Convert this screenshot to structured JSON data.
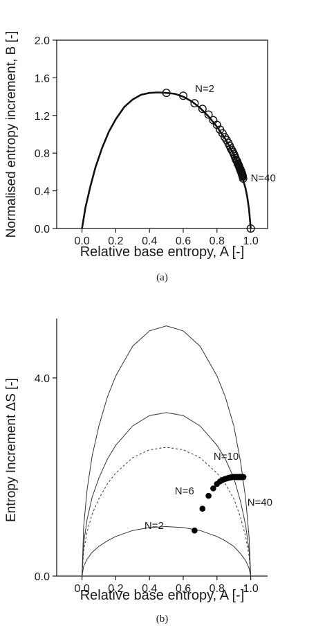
{
  "chart_data": [
    {
      "type": "scatter",
      "caption": "(a)",
      "xlabel": "Relative base entropy, A [-]",
      "ylabel": "Normalised entropy increment,  B [-]",
      "xlim": [
        -0.15,
        1.1
      ],
      "ylim": [
        0.0,
        2.0
      ],
      "xticks": [
        "0.0",
        "0.2",
        "0.4",
        "0.6",
        "0.8",
        "1.0"
      ],
      "yticks": [
        "0.0",
        "0.4",
        "0.8",
        "1.2",
        "1.6",
        "2.0"
      ],
      "grid": false,
      "curve": {
        "x": [
          0.0,
          0.02,
          0.05,
          0.08,
          0.12,
          0.16,
          0.2,
          0.25,
          0.3,
          0.35,
          0.4,
          0.45,
          0.5,
          0.55,
          0.6,
          0.65,
          0.7,
          0.75,
          0.8,
          0.85,
          0.9,
          0.93,
          0.95,
          0.97,
          0.98,
          0.99,
          1.0
        ],
        "y": [
          0.0,
          0.22,
          0.45,
          0.65,
          0.86,
          1.03,
          1.16,
          1.29,
          1.37,
          1.42,
          1.44,
          1.445,
          1.44,
          1.43,
          1.4,
          1.35,
          1.28,
          1.19,
          1.08,
          0.95,
          0.78,
          0.65,
          0.55,
          0.42,
          0.33,
          0.2,
          0.0
        ]
      },
      "points": {
        "x": [
          0.5,
          0.6,
          0.667,
          0.714,
          0.75,
          0.778,
          0.8,
          0.818,
          0.833,
          0.846,
          0.857,
          0.867,
          0.875,
          0.882,
          0.889,
          0.895,
          0.9,
          0.905,
          0.909,
          0.913,
          0.917,
          0.92,
          0.923,
          0.926,
          0.929,
          0.931,
          0.933,
          0.935,
          0.938,
          0.939,
          0.941,
          0.943,
          0.944,
          0.946,
          0.947,
          0.949,
          0.95,
          0.951,
          0.952,
          0.953,
          0.955,
          1.0
        ],
        "y": [
          1.44,
          1.41,
          1.33,
          1.27,
          1.21,
          1.15,
          1.1,
          1.05,
          1.01,
          0.97,
          0.94,
          0.91,
          0.88,
          0.85,
          0.83,
          0.81,
          0.79,
          0.77,
          0.75,
          0.73,
          0.72,
          0.71,
          0.69,
          0.68,
          0.67,
          0.66,
          0.65,
          0.64,
          0.63,
          0.62,
          0.61,
          0.61,
          0.6,
          0.59,
          0.58,
          0.58,
          0.57,
          0.56,
          0.56,
          0.55,
          0.53,
          0.0
        ]
      },
      "annotations": [
        {
          "text": "N=2",
          "x": 0.67,
          "y": 1.45
        },
        {
          "text": "N=40",
          "x": 1.0,
          "y": 0.5
        }
      ]
    },
    {
      "type": "scatter",
      "caption": "(b)",
      "xlabel": "Relative base entropy, A [-]",
      "ylabel": "Entropy Increment ΔS [-]",
      "xlim": [
        -0.15,
        1.1
      ],
      "ylim": [
        0.0,
        5.2
      ],
      "xticks": [
        "0.0",
        "0.2",
        "0.4",
        "0.6",
        "0.8",
        "1.0"
      ],
      "yticks": [
        "0.0",
        "4.0"
      ],
      "ytick_values": [
        0.0,
        4.0
      ],
      "grid": false,
      "curves": [
        {
          "style": "solid",
          "x": [
            0.0,
            0.01,
            0.03,
            0.06,
            0.1,
            0.15,
            0.2,
            0.3,
            0.4,
            0.5,
            0.6,
            0.7,
            0.8,
            0.85,
            0.9,
            0.94,
            0.97,
            0.99,
            1.0
          ],
          "y": [
            0.0,
            1.0,
            1.74,
            2.42,
            3.03,
            3.61,
            4.04,
            4.64,
            4.95,
            5.05,
            4.95,
            4.64,
            4.04,
            3.61,
            3.03,
            2.3,
            1.56,
            0.79,
            0.0
          ]
        },
        {
          "style": "solid",
          "x": [
            0.0,
            0.01,
            0.03,
            0.06,
            0.1,
            0.15,
            0.2,
            0.3,
            0.4,
            0.5,
            0.6,
            0.7,
            0.8,
            0.85,
            0.9,
            0.94,
            0.97,
            0.99,
            1.0
          ],
          "y": [
            0.0,
            0.66,
            1.14,
            1.59,
            1.98,
            2.36,
            2.64,
            3.03,
            3.24,
            3.3,
            3.24,
            3.03,
            2.64,
            2.36,
            1.98,
            1.5,
            1.02,
            0.52,
            0.0
          ]
        },
        {
          "style": "dashed",
          "x": [
            0.0,
            0.01,
            0.03,
            0.06,
            0.1,
            0.15,
            0.2,
            0.3,
            0.4,
            0.5,
            0.6,
            0.7,
            0.8,
            0.85,
            0.9,
            0.94,
            0.97,
            0.99,
            1.0
          ],
          "y": [
            0.0,
            0.52,
            0.89,
            1.25,
            1.56,
            1.86,
            2.08,
            2.39,
            2.55,
            2.6,
            2.55,
            2.39,
            2.08,
            1.86,
            1.56,
            1.18,
            0.8,
            0.41,
            0.0
          ]
        },
        {
          "style": "solid",
          "x": [
            0.0,
            0.01,
            0.03,
            0.06,
            0.1,
            0.15,
            0.2,
            0.3,
            0.4,
            0.5,
            0.6,
            0.7,
            0.8,
            0.85,
            0.9,
            0.94,
            0.97,
            0.99,
            1.0
          ],
          "y": [
            0.0,
            0.2,
            0.34,
            0.48,
            0.6,
            0.71,
            0.8,
            0.92,
            0.98,
            1.0,
            0.98,
            0.92,
            0.8,
            0.71,
            0.6,
            0.45,
            0.31,
            0.16,
            0.0
          ]
        }
      ],
      "points": {
        "x": [
          0.667,
          0.714,
          0.75,
          0.778,
          0.8,
          0.818,
          0.833,
          0.846,
          0.857,
          0.867,
          0.875,
          0.882,
          0.889,
          0.895,
          0.9,
          0.905,
          0.909,
          0.913,
          0.917,
          0.92,
          0.923,
          0.926,
          0.929,
          0.931,
          0.933,
          0.935,
          0.938,
          0.939,
          0.941,
          0.943,
          0.944,
          0.946,
          0.947,
          0.949,
          0.95,
          0.951,
          0.952,
          0.953,
          0.955,
          0.957
        ],
        "y": [
          0.92,
          1.36,
          1.62,
          1.77,
          1.86,
          1.91,
          1.94,
          1.96,
          1.97,
          1.98,
          1.99,
          1.99,
          2.0,
          2.0,
          2.0,
          2.0,
          2.0,
          2.0,
          2.0,
          2.0,
          2.0,
          2.0,
          2.0,
          2.0,
          2.0,
          2.0,
          2.0,
          2.0,
          2.0,
          2.0,
          2.0,
          2.0,
          2.0,
          2.0,
          2.0,
          2.0,
          2.0,
          2.0,
          2.0,
          2.0
        ]
      },
      "annotations": [
        {
          "text": "N=2",
          "x": 0.37,
          "y": 0.95
        },
        {
          "text": "N=6",
          "x": 0.55,
          "y": 1.65
        },
        {
          "text": "N=10",
          "x": 0.78,
          "y": 2.35
        },
        {
          "text": "N=40",
          "x": 0.98,
          "y": 1.42
        }
      ]
    }
  ]
}
